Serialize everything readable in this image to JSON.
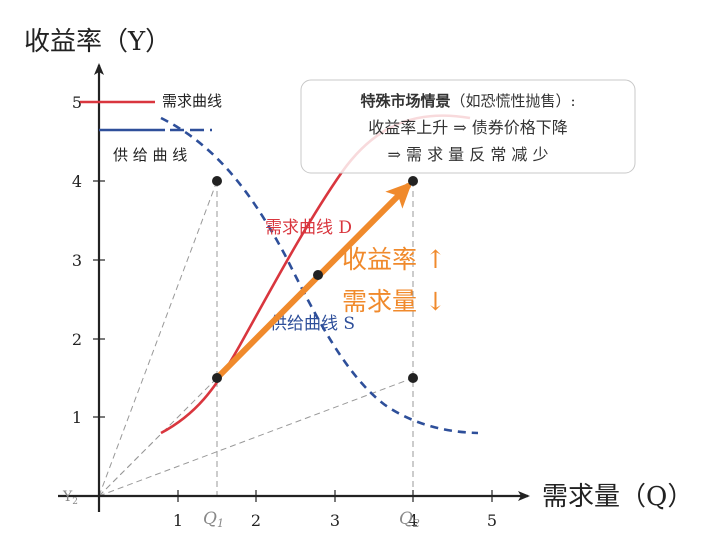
{
  "axes": {
    "y_title": "收益率（Y）",
    "x_title": "需求量（Q）",
    "x_ticks": [
      "1",
      "2",
      "3",
      "4",
      "5"
    ],
    "y_ticks": [
      "1",
      "2",
      "3",
      "4",
      "5"
    ],
    "origin_label": "Y",
    "origin_sub": "2",
    "q1_label": "Q",
    "q1_sub": "1",
    "q2_label": "Q",
    "q2_sub": "2"
  },
  "legend": {
    "demand": "需求曲线",
    "supply": "供 给 曲 线"
  },
  "callout": {
    "title_bold": "特殊市场情景",
    "title_rest": "（如恐慌性抛售）:",
    "line1": "收益率上升 ⇒ 债券价格下降",
    "line2": "⇒ 需 求 量 反 常 减 少"
  },
  "curve_labels": {
    "demand": "需求曲线 D",
    "supply": "供给曲线 S"
  },
  "annotation": {
    "yield_up": "收益率 ↑",
    "demand_down": "需求量 ↓"
  },
  "colors": {
    "demand": "#d9363e",
    "supply": "#2e4f9a",
    "arrow": "#f08a2c"
  }
}
